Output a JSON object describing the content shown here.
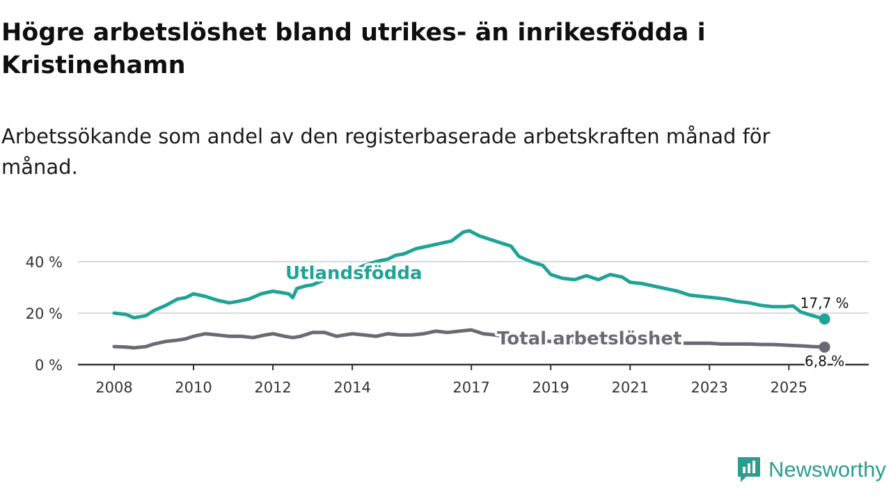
{
  "title": "Högre arbetslöshet bland utrikes- än inrikesfödda i Kristinehamn",
  "subtitle": "Arbetssökande som andel av den registerbaserade arbetskraften månad för månad.",
  "brand": "Newsworthy",
  "colors": {
    "foreign": "#1fa396",
    "total": "#6b6a73",
    "grid": "#d9d9d9",
    "axis": "#333333",
    "brand": "#2a9d8f"
  },
  "chart_data": {
    "type": "line",
    "title": "Högre arbetslöshet bland utrikes- än inrikesfödda i Kristinehamn",
    "xlabel": "",
    "ylabel": "",
    "xlim": [
      2008.0,
      2026.1
    ],
    "ylim": [
      0,
      50
    ],
    "x_ticks": [
      2008,
      2010,
      2012,
      2014,
      2017,
      2019,
      2021,
      2023,
      2025
    ],
    "x_tick_labels": [
      "2008",
      "2010",
      "2012",
      "2014",
      "2017",
      "2019",
      "2021",
      "2023",
      "2025"
    ],
    "y_ticks": [
      0,
      20,
      40
    ],
    "y_tick_labels": [
      "0 %",
      "20 %",
      "40 %"
    ],
    "grid": true,
    "series": [
      {
        "name": "Utlandsfödda",
        "label": "Utlandsfödda",
        "end_label": "17,7 %",
        "x": [
          2008.0,
          2008.3,
          2008.5,
          2008.8,
          2009.0,
          2009.3,
          2009.6,
          2009.8,
          2010.0,
          2010.3,
          2010.6,
          2010.9,
          2011.1,
          2011.4,
          2011.7,
          2012.0,
          2012.2,
          2012.4,
          2012.5,
          2012.6,
          2012.8,
          2013.0,
          2013.3,
          2013.6,
          2014.0,
          2014.3,
          2014.6,
          2014.9,
          2015.1,
          2015.3,
          2015.6,
          2015.9,
          2016.2,
          2016.5,
          2016.8,
          2016.95,
          2017.2,
          2017.5,
          2017.8,
          2018.0,
          2018.2,
          2018.5,
          2018.8,
          2019.0,
          2019.3,
          2019.6,
          2019.9,
          2020.2,
          2020.5,
          2020.8,
          2021.0,
          2021.3,
          2021.6,
          2021.9,
          2022.2,
          2022.5,
          2022.8,
          2023.1,
          2023.4,
          2023.7,
          2024.0,
          2024.3,
          2024.6,
          2024.9,
          2025.1,
          2025.3,
          2025.6,
          2025.9
        ],
        "values": [
          20.0,
          19.5,
          18.2,
          19.0,
          21.0,
          23.0,
          25.5,
          26.0,
          27.5,
          26.5,
          25.0,
          24.0,
          24.5,
          25.5,
          27.5,
          28.5,
          28.0,
          27.5,
          26.0,
          29.5,
          30.5,
          31.0,
          33.0,
          34.5,
          36.5,
          38.5,
          40.0,
          41.0,
          42.5,
          43.0,
          45.0,
          46.0,
          47.0,
          48.0,
          51.5,
          52.0,
          50.0,
          48.5,
          47.0,
          46.0,
          42.0,
          40.0,
          38.5,
          35.0,
          33.5,
          33.0,
          34.5,
          33.0,
          35.0,
          34.0,
          32.0,
          31.5,
          30.5,
          29.5,
          28.5,
          27.0,
          26.5,
          26.0,
          25.5,
          24.5,
          24.0,
          23.0,
          22.5,
          22.5,
          22.8,
          20.5,
          19.0,
          17.7
        ]
      },
      {
        "name": "Total arbetslöshet",
        "label": "Total arbetslöshet",
        "end_label": "6,8 %",
        "x": [
          2008.0,
          2008.3,
          2008.5,
          2008.8,
          2009.0,
          2009.3,
          2009.6,
          2009.8,
          2010.0,
          2010.3,
          2010.6,
          2010.9,
          2011.2,
          2011.5,
          2011.8,
          2012.0,
          2012.3,
          2012.5,
          2012.7,
          2013.0,
          2013.3,
          2013.6,
          2014.0,
          2014.3,
          2014.6,
          2014.9,
          2015.2,
          2015.5,
          2015.8,
          2016.1,
          2016.4,
          2016.7,
          2017.0,
          2017.3,
          2017.6,
          2018.0,
          2018.3,
          2018.6,
          2019.0,
          2019.3,
          2019.6,
          2020.0,
          2020.3,
          2020.6,
          2021.0,
          2021.3,
          2021.6,
          2022.0,
          2022.3,
          2022.6,
          2023.0,
          2023.3,
          2023.6,
          2024.0,
          2024.3,
          2024.6,
          2025.0,
          2025.3,
          2025.6,
          2025.9
        ],
        "values": [
          7.0,
          6.8,
          6.5,
          7.0,
          8.0,
          9.0,
          9.5,
          10.0,
          11.0,
          12.0,
          11.5,
          11.0,
          11.0,
          10.5,
          11.5,
          12.0,
          11.0,
          10.5,
          11.0,
          12.5,
          12.5,
          11.0,
          12.0,
          11.5,
          11.0,
          12.0,
          11.5,
          11.5,
          12.0,
          13.0,
          12.5,
          13.0,
          13.5,
          12.0,
          11.5,
          10.5,
          10.0,
          9.5,
          9.0,
          9.0,
          8.8,
          8.5,
          8.5,
          8.5,
          8.5,
          8.5,
          8.5,
          8.5,
          8.3,
          8.3,
          8.3,
          8.0,
          8.0,
          8.0,
          7.8,
          7.8,
          7.5,
          7.3,
          7.0,
          6.8
        ]
      }
    ]
  }
}
